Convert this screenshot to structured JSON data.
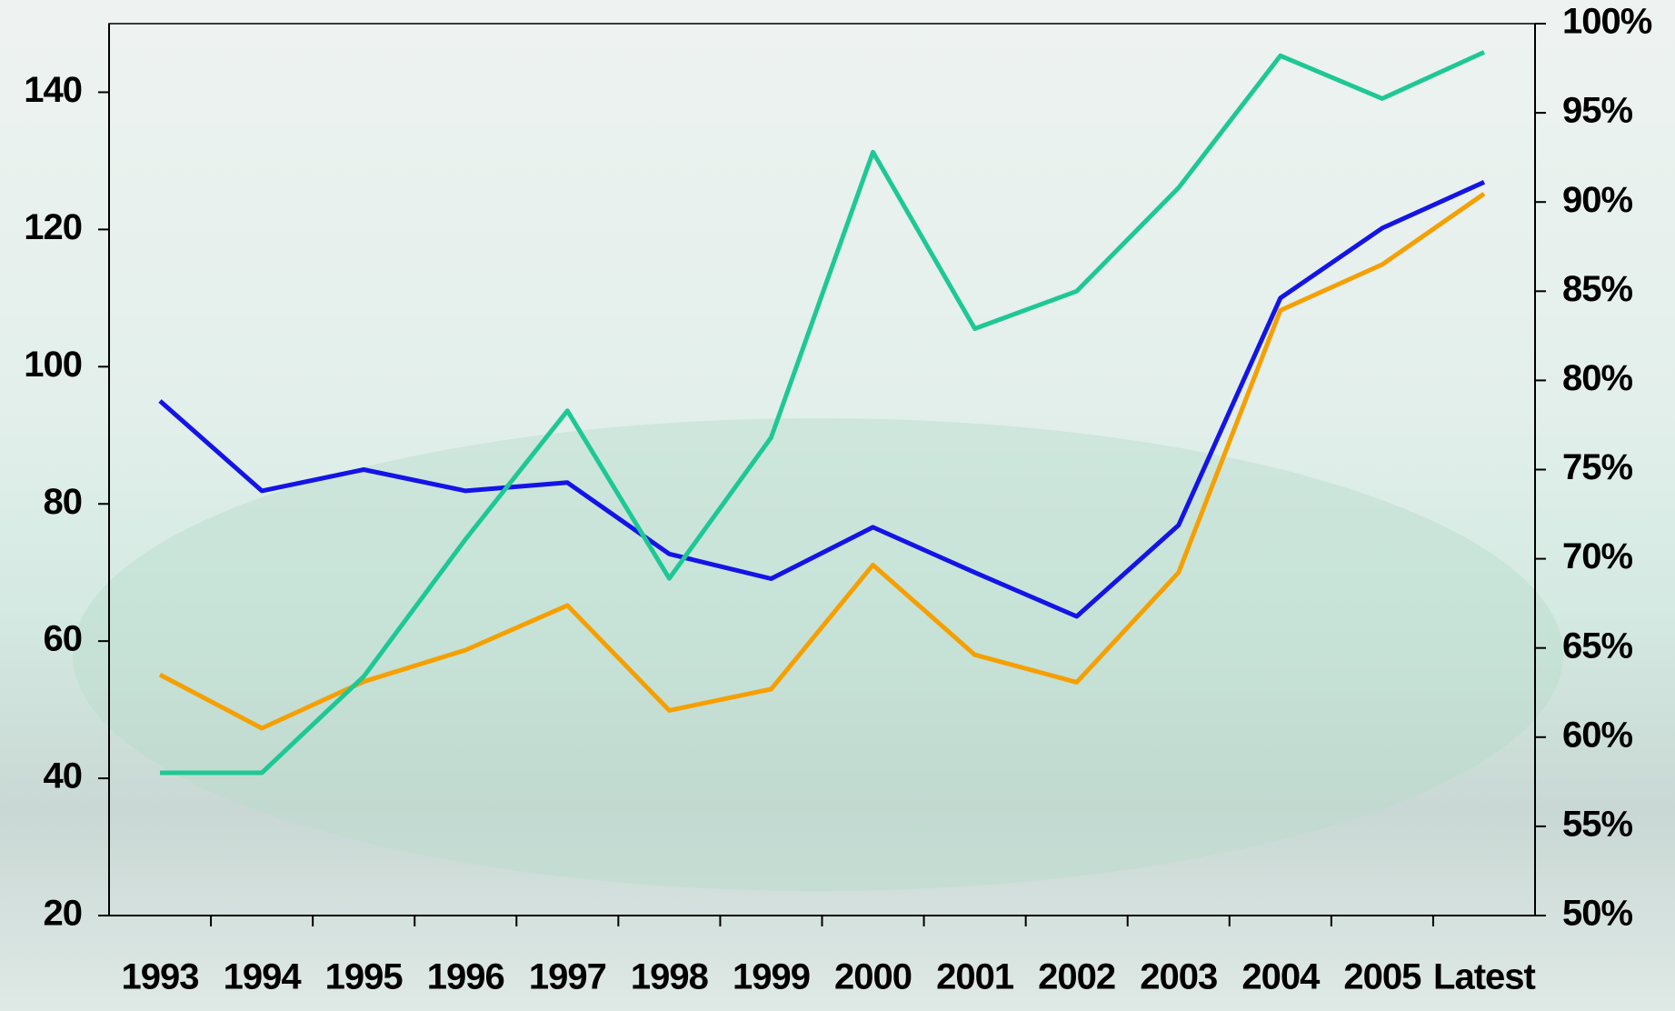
{
  "chart_data": {
    "type": "line",
    "categories": [
      "1993",
      "1994",
      "1995",
      "1996",
      "1997",
      "1998",
      "1999",
      "2000",
      "2001",
      "2002",
      "2003",
      "2004",
      "2005",
      "Latest"
    ],
    "series": [
      {
        "color": "#1414e6",
        "values": [
          95.0,
          81.9,
          85.0,
          81.9,
          83.1,
          72.7,
          69.1,
          76.6,
          70.0,
          63.6,
          76.9,
          110.0,
          120.2,
          126.9
        ]
      },
      {
        "color": "#f5a000",
        "values": [
          55.1,
          47.3,
          54.1,
          58.7,
          65.2,
          49.9,
          53.0,
          71.1,
          58.0,
          54.0,
          70.0,
          108.2,
          114.9,
          125.2
        ]
      },
      {
        "color": "#1ec894",
        "axis": "y2",
        "values": [
          58.0,
          58.0,
          63.4,
          71.1,
          78.3,
          68.9,
          76.8,
          92.8,
          82.9,
          85.0,
          90.8,
          98.2,
          95.8,
          98.4
        ]
      }
    ],
    "ylim": [
      20,
      150
    ],
    "yticks": [
      20,
      40,
      60,
      80,
      100,
      120,
      140
    ],
    "y2lim": [
      50,
      100
    ],
    "y2ticks": [
      {
        "value": 50,
        "label": "50%"
      },
      {
        "value": 55,
        "label": "55%"
      },
      {
        "value": 60,
        "label": "60%"
      },
      {
        "value": 65,
        "label": "65%"
      },
      {
        "value": 70,
        "label": "70%"
      },
      {
        "value": 75,
        "label": "75%"
      },
      {
        "value": 80,
        "label": "80%"
      },
      {
        "value": 85,
        "label": "85%"
      },
      {
        "value": 90,
        "label": "90%"
      },
      {
        "value": 95,
        "label": "95%"
      },
      {
        "value": 100,
        "label": "100%"
      }
    ],
    "grid": false
  }
}
